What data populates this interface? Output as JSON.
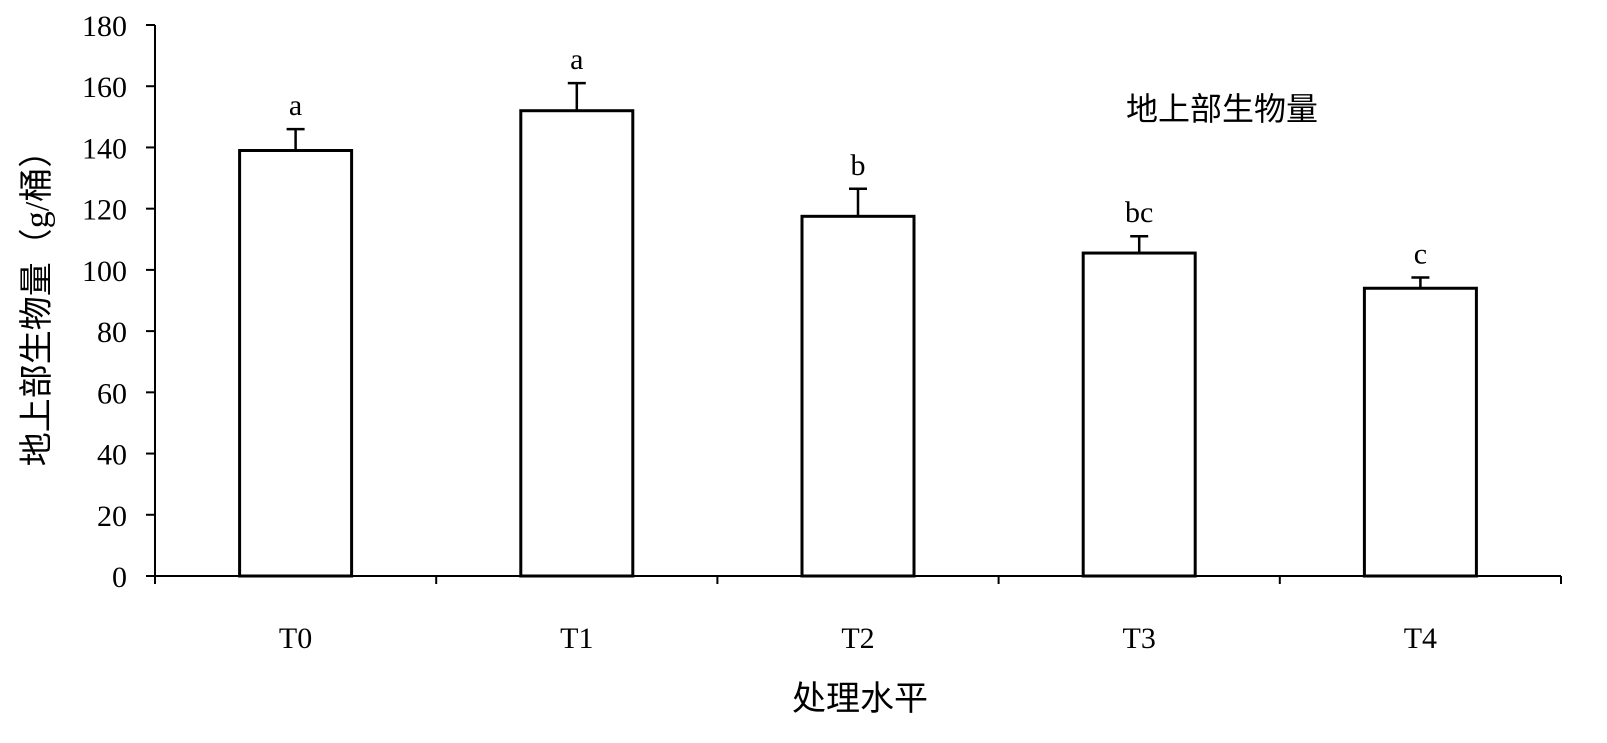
{
  "chart_data": {
    "type": "bar",
    "title": "",
    "legend_label": "地上部生物量",
    "legend_position": "top-right",
    "xlabel": "处理水平",
    "ylabel": "地上部生物量（g/桶）",
    "categories": [
      "T0",
      "T1",
      "T2",
      "T3",
      "T4"
    ],
    "series": [
      {
        "name": "地上部生物量",
        "values": [
          139,
          152,
          117.5,
          105.5,
          94
        ],
        "errors": [
          7,
          9,
          9,
          5.5,
          3.5
        ],
        "significance": [
          "a",
          "a",
          "b",
          "bc",
          "c"
        ]
      }
    ],
    "ylim": [
      0,
      180
    ],
    "yticks": [
      0,
      20,
      40,
      60,
      80,
      100,
      120,
      140,
      160,
      180
    ],
    "grid": false,
    "bar_fill": "#ffffff",
    "bar_stroke": "#000000"
  }
}
